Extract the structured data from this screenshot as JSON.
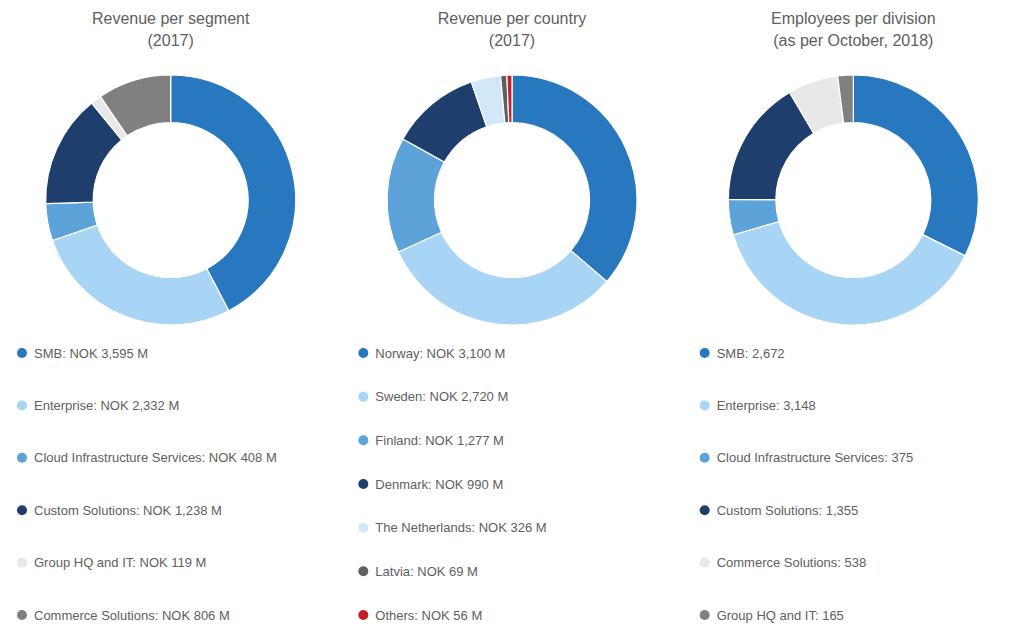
{
  "chart_data": [
    {
      "type": "pie",
      "title": "Revenue per segment\n(2017)",
      "categories": [
        "SMB: NOK 3,595 M",
        "Enterprise: NOK 2,332 M",
        "Cloud Infrastructure Services: NOK 408 M",
        "Custom Solutions: NOK 1,238 M",
        "Group HQ and IT: NOK 119 M",
        "Commerce Solutions: NOK 806 M"
      ],
      "values": [
        3595,
        2332,
        408,
        1238,
        119,
        806
      ],
      "colors": [
        "#2878c0",
        "#a8d4f5",
        "#5ba3d9",
        "#1e3f6e",
        "#e8e8e8",
        "#808080"
      ]
    },
    {
      "type": "pie",
      "title": "Revenue per country\n(2017)",
      "categories": [
        "Norway: NOK 3,100 M",
        "Sweden: NOK 2,720 M",
        "Finland: NOK 1,277 M",
        "Denmark: NOK 990 M",
        "The Netherlands: NOK 326 M",
        "Latvia: NOK 69 M",
        "Others: NOK 56 M"
      ],
      "values": [
        3100,
        2720,
        1277,
        990,
        326,
        69,
        56
      ],
      "colors": [
        "#2878c0",
        "#a8d4f5",
        "#5ba3d9",
        "#1e3f6e",
        "#d0e8f8",
        "#606060",
        "#c0202a"
      ]
    },
    {
      "type": "pie",
      "title": "Employees per division\n(as per October, 2018)",
      "categories": [
        "SMB: 2,672",
        "Enterprise: 3,148",
        "Cloud Infrastructure Services: 375",
        "Custom Solutions: 1,355",
        "Commerce Solutions: 538",
        "Group HQ and IT: 165"
      ],
      "values": [
        2672,
        3148,
        375,
        1355,
        538,
        165
      ],
      "colors": [
        "#2878c0",
        "#a8d4f5",
        "#5ba3d9",
        "#1e3f6e",
        "#e8e8e8",
        "#808080"
      ]
    }
  ]
}
